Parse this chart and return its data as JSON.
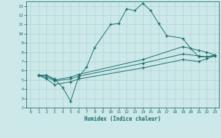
{
  "xlabel": "Humidex (Indice chaleur)",
  "bg_color": "#cce8e8",
  "line_color": "#1a6b6b",
  "xlim": [
    -0.5,
    23.5
  ],
  "ylim": [
    2,
    13.5
  ],
  "xticks": [
    0,
    1,
    2,
    3,
    4,
    5,
    6,
    7,
    8,
    9,
    10,
    11,
    12,
    13,
    14,
    15,
    16,
    17,
    18,
    19,
    20,
    21,
    22,
    23
  ],
  "yticks": [
    2,
    3,
    4,
    5,
    6,
    7,
    8,
    9,
    10,
    11,
    12,
    13
  ],
  "line1_x": [
    1,
    2,
    3,
    4,
    5,
    6,
    7,
    8,
    10,
    11,
    12,
    13,
    14,
    15,
    16,
    17,
    19,
    20,
    21,
    22,
    23
  ],
  "line1_y": [
    5.5,
    5.5,
    5.1,
    4.2,
    2.7,
    5.3,
    6.4,
    8.5,
    11.0,
    11.1,
    12.7,
    12.5,
    13.3,
    12.5,
    11.1,
    9.8,
    9.5,
    8.4,
    7.5,
    7.5,
    7.7
  ],
  "line2_x": [
    1,
    2,
    3,
    5,
    6,
    14,
    19,
    21,
    22,
    23
  ],
  "line2_y": [
    5.5,
    5.5,
    5.0,
    5.3,
    5.6,
    7.2,
    8.6,
    8.2,
    8.0,
    7.7
  ],
  "line3_x": [
    1,
    2,
    3,
    5,
    6,
    14,
    19,
    21,
    22,
    23
  ],
  "line3_y": [
    5.5,
    5.3,
    4.9,
    5.1,
    5.4,
    6.8,
    7.8,
    7.6,
    7.5,
    7.6
  ],
  "line4_x": [
    1,
    2,
    3,
    5,
    6,
    14,
    19,
    21,
    22,
    23
  ],
  "line4_y": [
    5.5,
    5.1,
    4.5,
    4.8,
    5.1,
    6.3,
    7.2,
    7.0,
    7.3,
    7.6
  ]
}
